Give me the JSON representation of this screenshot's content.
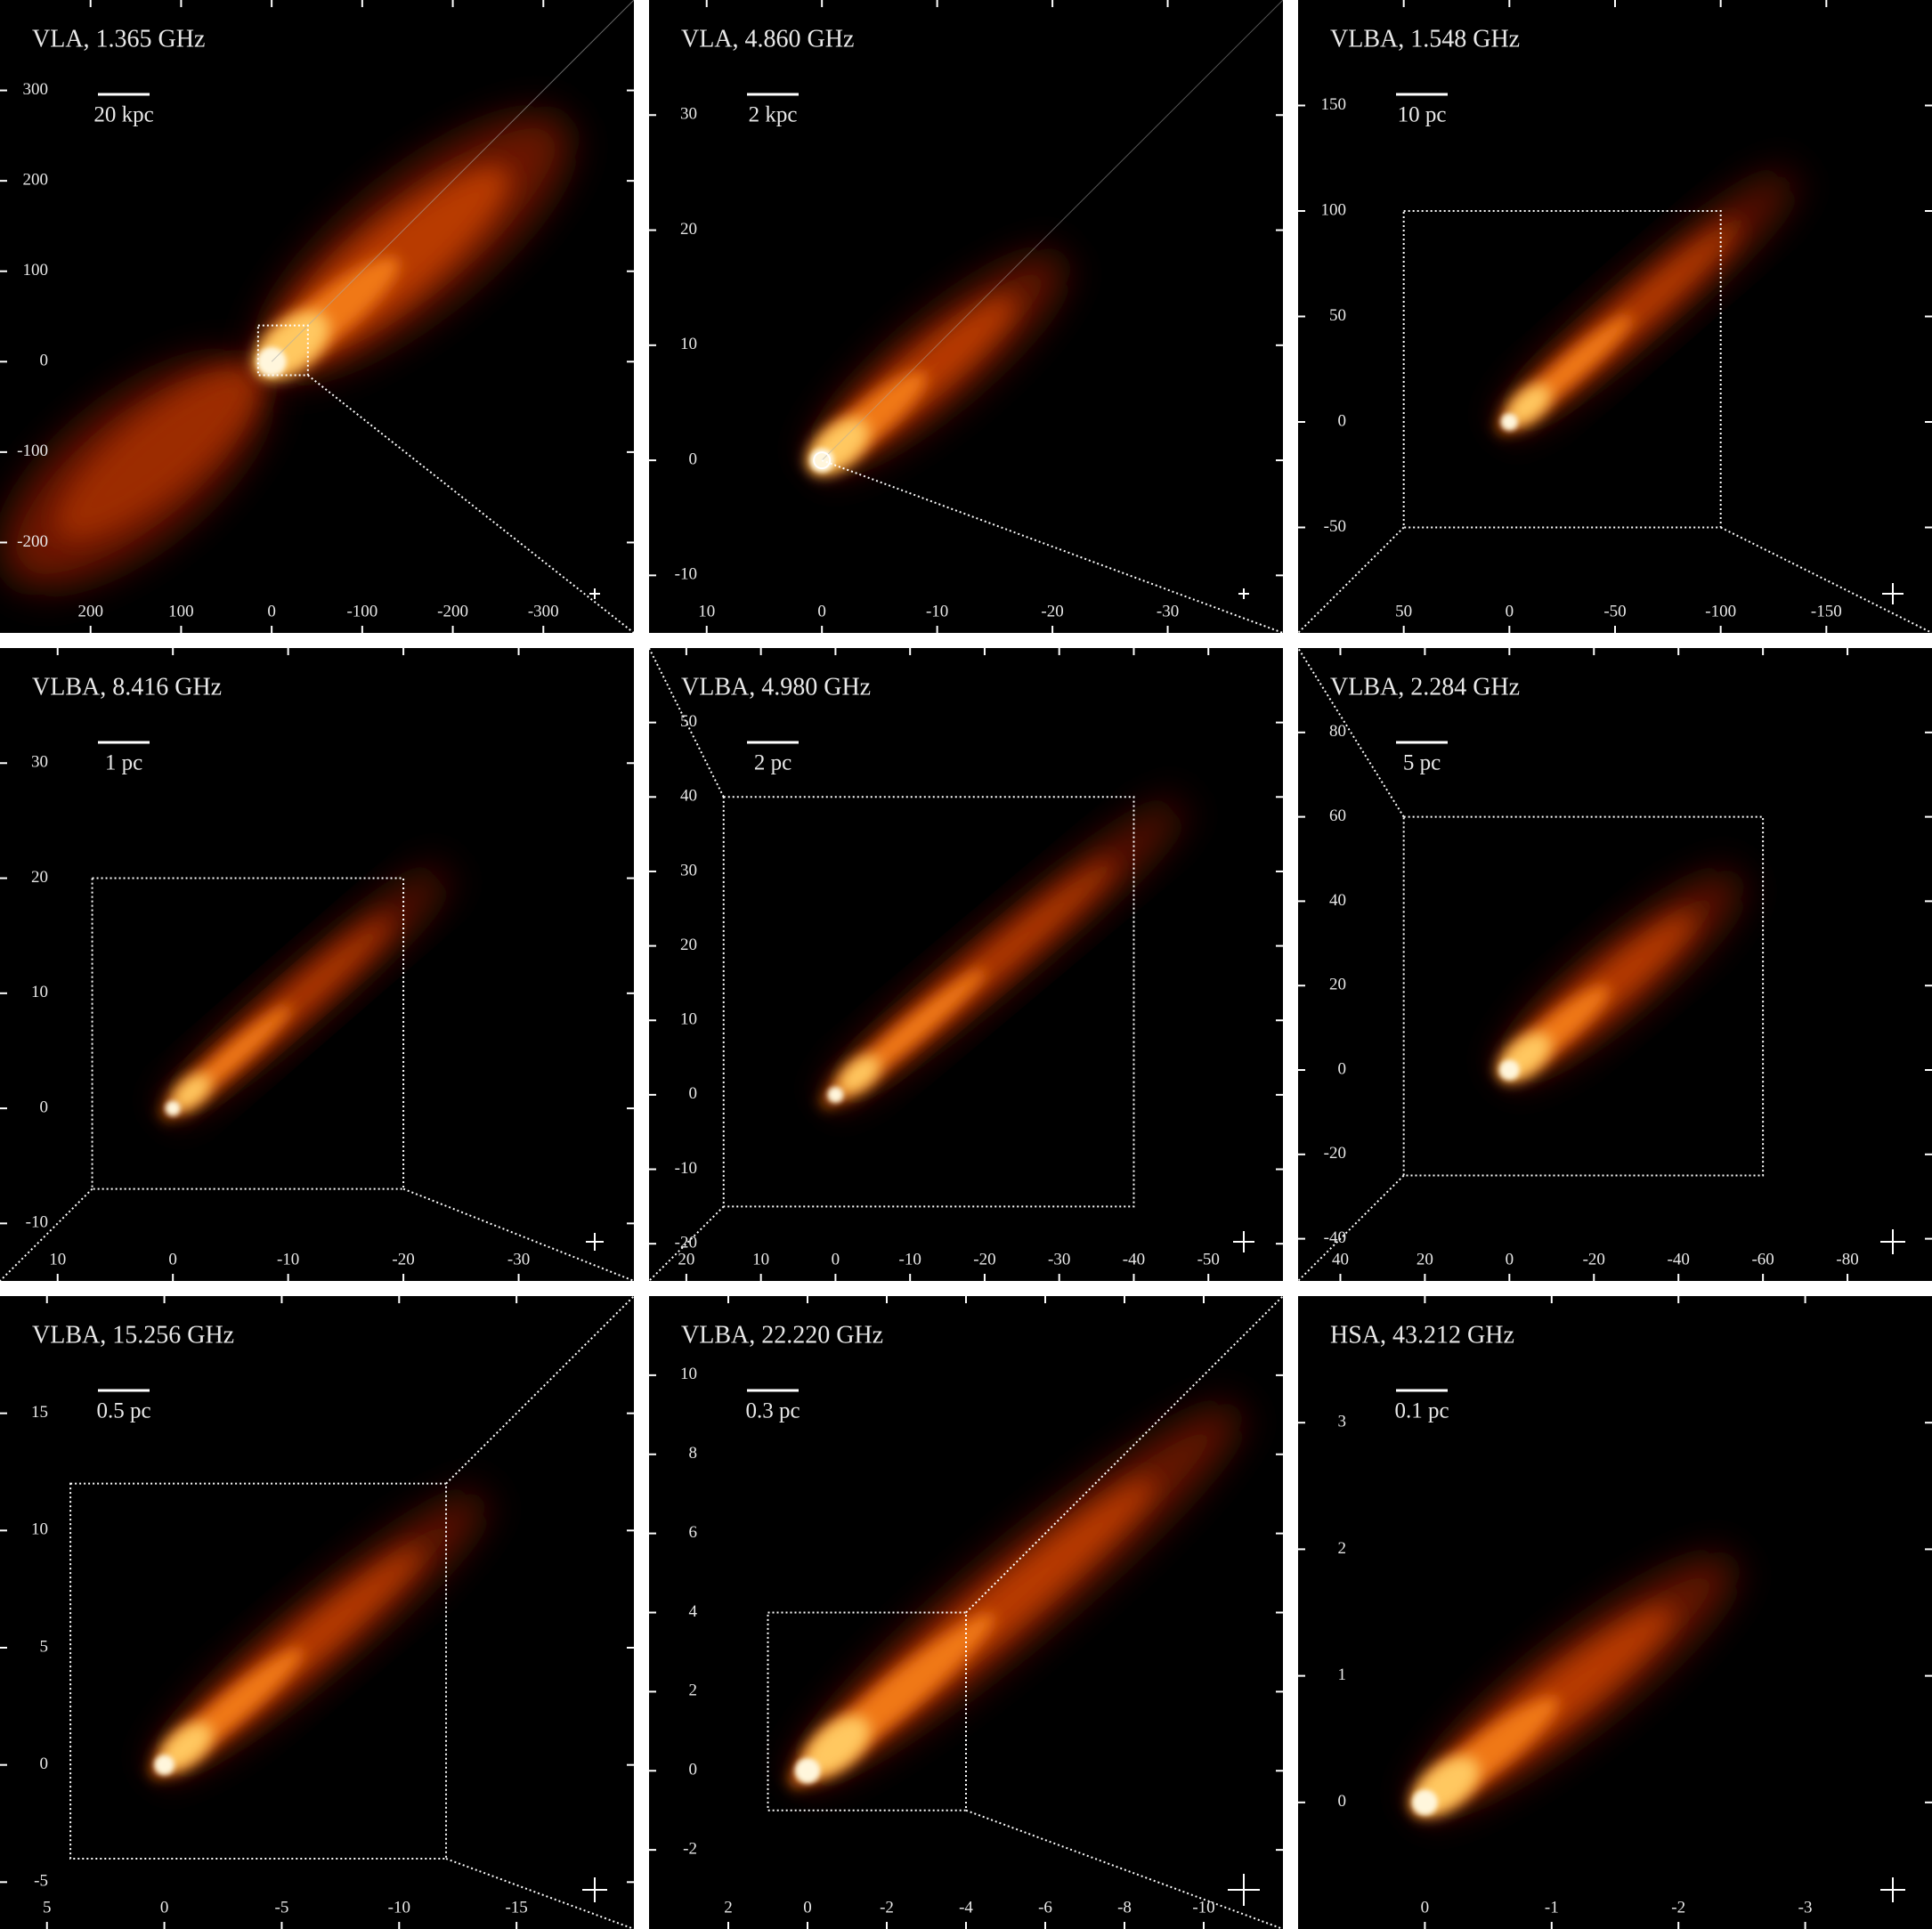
{
  "chart_data": [
    {
      "type": "image",
      "title": "VLA, 1.365 GHz",
      "scale_bar": "20 kpc",
      "xlim": [
        300,
        -400
      ],
      "ylim": [
        -300,
        400
      ],
      "xticks": [
        200,
        100,
        0,
        -100,
        -200,
        -300
      ],
      "yticks": [
        -200,
        -100,
        0,
        100,
        200,
        300
      ],
      "box": {
        "x": [
          15,
          -40
        ],
        "y": [
          -15,
          40
        ]
      }
    },
    {
      "type": "image",
      "title": "VLA, 4.860 GHz",
      "scale_bar": "2 kpc",
      "xlim": [
        15,
        -40
      ],
      "ylim": [
        -15,
        40
      ],
      "xticks": [
        10,
        0,
        -10,
        -20,
        -30
      ],
      "yticks": [
        -10,
        0,
        10,
        20,
        30
      ]
    },
    {
      "type": "image",
      "title": "VLBA, 1.548 GHz",
      "scale_bar": "10 pc",
      "xlim": [
        100,
        -200
      ],
      "ylim": [
        -100,
        200
      ],
      "xticks": [
        50,
        0,
        -50,
        -100,
        -150
      ],
      "yticks": [
        -50,
        0,
        50,
        100,
        150
      ],
      "box": {
        "x": [
          50,
          -100
        ],
        "y": [
          -50,
          100
        ]
      }
    },
    {
      "type": "image",
      "title": "VLBA, 8.416 GHz",
      "scale_bar": "1 pc",
      "xlim": [
        15,
        -40
      ],
      "ylim": [
        -15,
        40
      ],
      "xticks": [
        10,
        0,
        -10,
        -20,
        -30
      ],
      "yticks": [
        -10,
        0,
        10,
        20,
        30
      ],
      "box": {
        "x": [
          7,
          -20
        ],
        "y": [
          -7,
          20
        ]
      }
    },
    {
      "type": "image",
      "title": "VLBA, 4.980 GHz",
      "scale_bar": "2 pc",
      "xlim": [
        25,
        -60
      ],
      "ylim": [
        -25,
        60
      ],
      "xticks": [
        20,
        10,
        0,
        -10,
        -20,
        -30,
        -40,
        -50
      ],
      "yticks": [
        -20,
        -10,
        0,
        10,
        20,
        30,
        40,
        50
      ],
      "box": {
        "x": [
          15,
          -40
        ],
        "y": [
          -15,
          40
        ]
      }
    },
    {
      "type": "image",
      "title": "VLBA, 2.284 GHz",
      "scale_bar": "5 pc",
      "xlim": [
        50,
        -100
      ],
      "ylim": [
        -50,
        100
      ],
      "xticks": [
        40,
        20,
        0,
        -20,
        -40,
        -60,
        -80
      ],
      "yticks": [
        -40,
        -20,
        0,
        20,
        40,
        60,
        80
      ],
      "box": {
        "x": [
          25,
          -60
        ],
        "y": [
          -25,
          60
        ]
      }
    },
    {
      "type": "image",
      "title": "VLBA, 15.256 GHz",
      "scale_bar": "0.5 pc",
      "xlim": [
        7,
        -20
      ],
      "ylim": [
        -7,
        20
      ],
      "xticks": [
        5,
        0,
        -5,
        -10,
        -15
      ],
      "yticks": [
        -5,
        0,
        5,
        10,
        15
      ],
      "box": {
        "x": [
          4,
          -12
        ],
        "y": [
          -4,
          12
        ]
      }
    },
    {
      "type": "image",
      "title": "VLBA, 22.220 GHz",
      "scale_bar": "0.3 pc",
      "xlim": [
        4,
        -12
      ],
      "ylim": [
        -4,
        12
      ],
      "xticks": [
        2,
        0,
        -2,
        -4,
        -6,
        -8,
        -10
      ],
      "yticks": [
        -2,
        0,
        2,
        4,
        6,
        8,
        10
      ],
      "box": {
        "x": [
          1,
          -4
        ],
        "y": [
          -1,
          4
        ]
      }
    },
    {
      "type": "image",
      "title": "HSA, 43.212 GHz",
      "scale_bar": "0.1 pc",
      "xlim": [
        1,
        -4
      ],
      "ylim": [
        -1,
        4
      ],
      "xticks": [
        0,
        -1,
        -2,
        -3
      ],
      "yticks": [
        0,
        1,
        2,
        3
      ]
    }
  ]
}
